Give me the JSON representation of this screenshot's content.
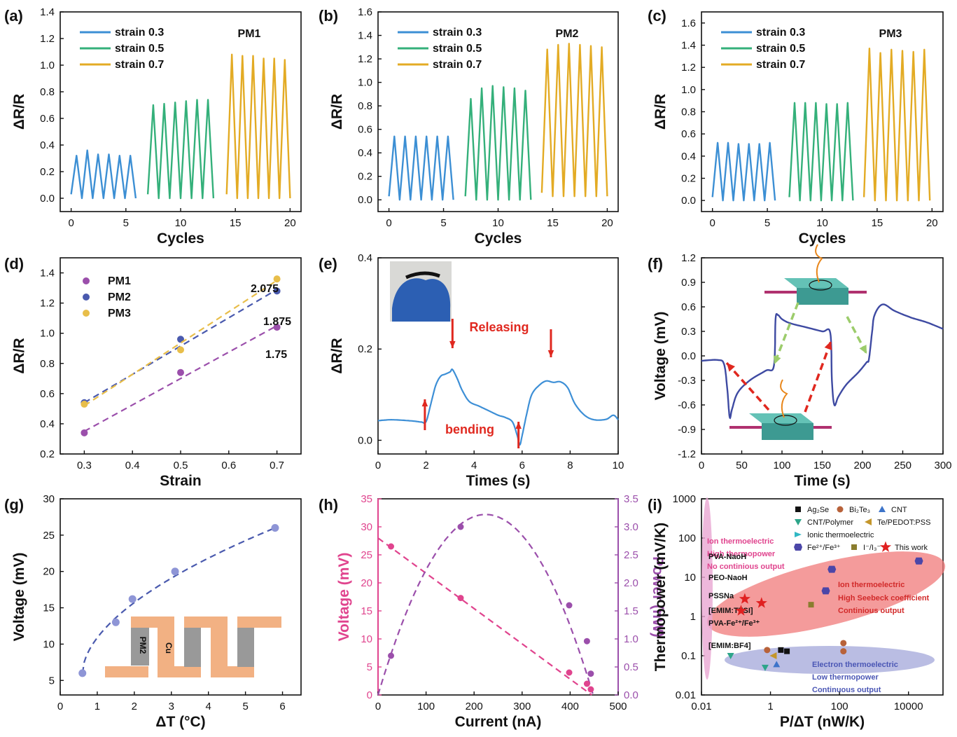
{
  "figure": {
    "colors": {
      "strain03": "#3c8fd4",
      "strain05": "#34b07a",
      "strain07": "#e3ab24",
      "pm1": "#9b4fab",
      "pm2": "#4a5aae",
      "pm3": "#e8be4a",
      "line_e": "#3d8fd6",
      "line_f": "#3e4aa2",
      "arrow_red": "#e0281f",
      "arrow_green": "#9ccc6b",
      "pink": "#e0448e",
      "purple": "#9b4fab",
      "circuit_orange": "#f2b183",
      "circuit_gray": "#999999",
      "device_teal": "#3d9a92",
      "ellipse_red": "#f07a7a",
      "ellipse_blue": "#a9acdc",
      "ellipse_pink": "#e9a6d2"
    }
  },
  "chart_data": [
    {
      "panel": "(a)",
      "type": "line",
      "xlabel": "Cycles",
      "ylabel": "ΔR/R",
      "xlim": [
        -1,
        21
      ],
      "ylim": [
        -0.1,
        1.4
      ],
      "xticks": [
        "0",
        "5",
        "10",
        "15",
        "20"
      ],
      "yticks": [
        "0.0",
        "0.2",
        "0.4",
        "0.6",
        "0.8",
        "1.0",
        "1.2",
        "1.4"
      ],
      "annotation": "PM1",
      "series": [
        {
          "name": "strain 0.3",
          "x_range": [
            0,
            5.9
          ],
          "peaks": [
            0.32,
            0.36,
            0.33,
            0.33,
            0.32,
            0.32
          ],
          "min": 0.0
        },
        {
          "name": "strain 0.5",
          "x_range": [
            7,
            13
          ],
          "peaks": [
            0.7,
            0.71,
            0.72,
            0.73,
            0.74,
            0.74
          ],
          "min": 0.0
        },
        {
          "name": "strain 0.7",
          "x_range": [
            14.2,
            20
          ],
          "peaks": [
            1.08,
            1.07,
            1.07,
            1.05,
            1.05,
            1.04
          ],
          "min": 0.0
        }
      ]
    },
    {
      "panel": "(b)",
      "type": "line",
      "xlabel": "Cycles",
      "ylabel": "ΔR/R",
      "xlim": [
        -1,
        21
      ],
      "ylim": [
        -0.1,
        1.6
      ],
      "xticks": [
        "0",
        "5",
        "10",
        "15",
        "20"
      ],
      "yticks": [
        "0.0",
        "0.2",
        "0.4",
        "0.6",
        "0.8",
        "1.0",
        "1.2",
        "1.4",
        "1.6"
      ],
      "annotation": "PM2",
      "series": [
        {
          "name": "strain 0.3",
          "x_range": [
            0,
            5.9
          ],
          "peaks": [
            0.54,
            0.54,
            0.54,
            0.54,
            0.54,
            0.54
          ],
          "min": 0.0
        },
        {
          "name": "strain 0.5",
          "x_range": [
            7,
            13
          ],
          "peaks": [
            0.86,
            0.95,
            0.97,
            0.96,
            0.95,
            0.93
          ],
          "min": 0.0
        },
        {
          "name": "strain 0.7",
          "x_range": [
            14,
            20
          ],
          "peaks": [
            1.28,
            1.32,
            1.33,
            1.32,
            1.31,
            1.3
          ],
          "min": 0.03
        }
      ]
    },
    {
      "panel": "(c)",
      "type": "line",
      "xlabel": "Cycles",
      "ylabel": "ΔR/R",
      "xlim": [
        -1,
        21
      ],
      "ylim": [
        -0.1,
        1.7
      ],
      "xticks": [
        "0",
        "5",
        "10",
        "15",
        "20"
      ],
      "yticks": [
        "0.0",
        "0.2",
        "0.4",
        "0.6",
        "0.8",
        "1.0",
        "1.2",
        "1.4",
        "1.6"
      ],
      "annotation": "PM3",
      "series": [
        {
          "name": "strain 0.3",
          "x_range": [
            0,
            5.7
          ],
          "peaks": [
            0.52,
            0.52,
            0.51,
            0.51,
            0.51,
            0.52
          ],
          "min": 0.0
        },
        {
          "name": "strain 0.5",
          "x_range": [
            7,
            12.8
          ],
          "peaks": [
            0.88,
            0.88,
            0.88,
            0.87,
            0.87,
            0.88
          ],
          "min": 0.0
        },
        {
          "name": "strain 0.7",
          "x_range": [
            13.8,
            19.8
          ],
          "peaks": [
            1.37,
            1.33,
            1.36,
            1.35,
            1.34,
            1.36
          ],
          "min": 0.0
        }
      ]
    },
    {
      "panel": "(d)",
      "type": "scatter",
      "xlabel": "Strain",
      "ylabel": "ΔR/R",
      "xlim": [
        0.25,
        0.75
      ],
      "ylim": [
        0.2,
        1.5
      ],
      "xticks": [
        "0.3",
        "0.4",
        "0.5",
        "0.6",
        "0.7"
      ],
      "yticks": [
        "0.2",
        "0.4",
        "0.6",
        "0.8",
        "1.0",
        "1.2",
        "1.4"
      ],
      "series": [
        {
          "name": "PM1",
          "x": [
            0.3,
            0.5,
            0.7
          ],
          "y": [
            0.34,
            0.74,
            1.04
          ],
          "fit": [
            0.35,
            1.05
          ],
          "slope_label": "1.75"
        },
        {
          "name": "PM2",
          "x": [
            0.3,
            0.5,
            0.7
          ],
          "y": [
            0.54,
            0.96,
            1.28
          ],
          "fit": [
            0.54,
            1.29
          ],
          "slope_label": "1.875"
        },
        {
          "name": "PM3",
          "x": [
            0.3,
            0.5,
            0.7
          ],
          "y": [
            0.53,
            0.89,
            1.36
          ],
          "fit": [
            0.52,
            1.35
          ],
          "slope_label": "2.075"
        }
      ]
    },
    {
      "panel": "(e)",
      "type": "line",
      "xlabel": "Times (s)",
      "ylabel": "ΔR/R",
      "xlim": [
        0,
        10
      ],
      "ylim": [
        -0.03,
        0.4
      ],
      "xticks": [
        "0",
        "2",
        "4",
        "6",
        "8",
        "10"
      ],
      "yticks": [
        "0.0",
        "0.2",
        "0.4"
      ],
      "annotations": [
        "Releasing",
        "bending"
      ],
      "x": [
        0,
        0.5,
        1.0,
        1.5,
        1.8,
        2.0,
        2.2,
        2.4,
        2.6,
        2.8,
        3.0,
        3.1,
        3.3,
        3.5,
        3.8,
        4.2,
        4.6,
        5.0,
        5.3,
        5.6,
        5.8,
        5.9,
        6.0,
        6.2,
        6.4,
        6.7,
        7.0,
        7.3,
        7.6,
        7.9,
        8.2,
        8.6,
        9.0,
        9.5,
        9.8,
        10.0
      ],
      "y": [
        0.043,
        0.045,
        0.044,
        0.042,
        0.04,
        0.041,
        0.08,
        0.12,
        0.14,
        0.145,
        0.15,
        0.155,
        0.135,
        0.11,
        0.085,
        0.075,
        0.065,
        0.055,
        0.05,
        0.04,
        0.01,
        -0.01,
        0.01,
        0.06,
        0.1,
        0.12,
        0.13,
        0.127,
        0.128,
        0.115,
        0.08,
        0.055,
        0.045,
        0.046,
        0.055,
        0.045
      ]
    },
    {
      "panel": "(f)",
      "type": "line",
      "xlabel": "Time (s)",
      "ylabel": "Voltage (mV)",
      "xlim": [
        0,
        300
      ],
      "ylim": [
        -1.2,
        1.2
      ],
      "xticks": [
        "0",
        "50",
        "100",
        "150",
        "200",
        "250",
        "300"
      ],
      "yticks": [
        "-1.2",
        "-0.9",
        "-0.6",
        "-0.3",
        "0.0",
        "0.3",
        "0.6",
        "0.9",
        "1.2"
      ],
      "x": [
        0,
        20,
        28,
        32,
        35,
        38,
        45,
        60,
        80,
        90,
        92,
        95,
        100,
        110,
        130,
        150,
        160,
        162,
        165,
        170,
        180,
        195,
        205,
        208,
        212,
        215,
        225,
        240,
        260,
        280,
        300
      ],
      "y": [
        -0.06,
        -0.05,
        -0.1,
        -0.4,
        -0.75,
        -0.65,
        -0.45,
        -0.3,
        -0.18,
        -0.12,
        0.45,
        0.5,
        0.45,
        0.4,
        0.35,
        0.3,
        0.28,
        -0.3,
        -0.6,
        -0.5,
        -0.35,
        -0.2,
        -0.08,
        -0.04,
        0.3,
        0.5,
        0.63,
        0.55,
        0.47,
        0.41,
        0.33
      ]
    },
    {
      "panel": "(g)",
      "type": "scatter",
      "xlabel": "ΔT (°C)",
      "ylabel": "Voltage (mV)",
      "xlim": [
        0,
        6.5
      ],
      "ylim": [
        3,
        30
      ],
      "xticks": [
        "0",
        "1",
        "2",
        "3",
        "4",
        "5",
        "6"
      ],
      "yticks": [
        "5",
        "10",
        "15",
        "20",
        "25",
        "30"
      ],
      "inset_labels": [
        "PM2",
        "Cu"
      ],
      "x": [
        0.6,
        1.5,
        1.95,
        3.1,
        5.8
      ],
      "y": [
        6,
        13,
        16.2,
        20,
        26
      ]
    },
    {
      "panel": "(h)",
      "type": "scatter",
      "xlabel": "Current (nA)",
      "ylabel": "Voltage (mV)",
      "ylabel_right": "Power (nW)",
      "xlim": [
        0,
        500
      ],
      "ylim": [
        0,
        35
      ],
      "ylim_right": [
        0,
        3.5
      ],
      "xticks": [
        "0",
        "100",
        "200",
        "300",
        "400",
        "500"
      ],
      "yticks": [
        "0",
        "5",
        "10",
        "15",
        "20",
        "25",
        "30",
        "35"
      ],
      "yticks_right": [
        "0.0",
        "0.5",
        "1.0",
        "1.5",
        "2.0",
        "2.5",
        "3.0",
        "3.5"
      ],
      "series": [
        {
          "axis": "left",
          "x": [
            27,
            172,
            398,
            435,
            443
          ],
          "y": [
            26.5,
            17.3,
            4,
            2,
            1
          ]
        },
        {
          "axis": "right",
          "x": [
            27,
            172,
            398,
            435,
            443
          ],
          "y": [
            0.7,
            3.0,
            1.6,
            0.96,
            0.38
          ]
        }
      ]
    },
    {
      "panel": "(i)",
      "type": "scatter",
      "xlabel": "P/ΔT (nW/K)",
      "ylabel": "Thermopower (mV/K)",
      "xscale": "log",
      "yscale": "log",
      "xlim": [
        0.01,
        100000
      ],
      "ylim": [
        0.01,
        1000
      ],
      "xticks": [
        "0.01",
        "1",
        "100",
        "10000"
      ],
      "yticks": [
        "0.01",
        "0.1",
        "1",
        "10",
        "100",
        "1000"
      ],
      "legend": [
        "Ag₂Se",
        "Bi₂Te₃",
        "CNT",
        "CNT/Polymer",
        "Te/PEDOT:PSS",
        "Ionic thermoelectric",
        "Fe²⁺/Fe³⁺",
        "I⁻/I₃⁻",
        "This work"
      ],
      "region_labels": [
        "Ion thermoelectric",
        "High thermopower",
        "No continious output",
        "Ion thermoelectric",
        "High Seebeck coefficient",
        "Continious output",
        "Electron thermoelectric",
        "Low thermopower",
        "Continuous output"
      ],
      "point_labels": [
        "PVA-NaoH",
        "PEO-NaoH",
        "PSSNa",
        "[EMIM:TFSI]",
        "PVA-Fe²⁺/Fe³⁺",
        "[EMIM:BF4]"
      ],
      "series": [
        {
          "name": "Ag₂Se",
          "x": [
            2,
            3
          ],
          "y": [
            0.14,
            0.13
          ]
        },
        {
          "name": "Bi₂Te₃",
          "x": [
            0.8,
            130,
            130
          ],
          "y": [
            0.14,
            0.21,
            0.13
          ]
        },
        {
          "name": "CNT",
          "x": [
            1.5
          ],
          "y": [
            0.06
          ]
        },
        {
          "name": "CNT/Polymer",
          "x": [
            0.07,
            0.7
          ],
          "y": [
            0.1,
            0.05
          ]
        },
        {
          "name": "Te/PEDOT:PSS",
          "x": [
            1.2
          ],
          "y": [
            0.1
          ]
        },
        {
          "name": "Fe²⁺/Fe³⁺",
          "x": [
            40,
            60,
            20000
          ],
          "y": [
            4.5,
            16,
            26
          ]
        },
        {
          "name": "I⁻/I₃⁻",
          "x": [
            15
          ],
          "y": [
            2
          ]
        },
        {
          "name": "This work",
          "x": [
            0.18,
            0.55,
            0.14
          ],
          "y": [
            2.8,
            2.2,
            1.4
          ]
        }
      ]
    }
  ]
}
